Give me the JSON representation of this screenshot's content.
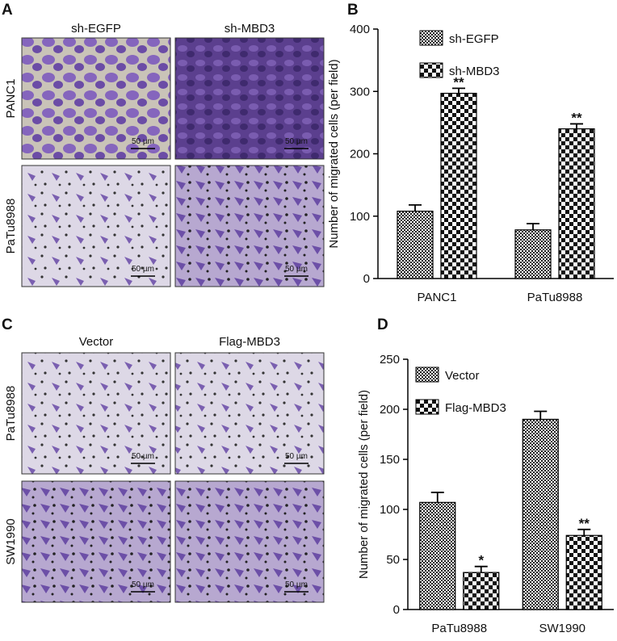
{
  "image_panels": [
    {
      "panel": "A",
      "columns": [
        "sh-EGFP",
        "sh-MBD3"
      ],
      "rows": [
        "PANC1",
        "PaTu8988"
      ],
      "scale_bar": "50 µm"
    },
    {
      "panel": "C",
      "columns": [
        "Vector",
        "Flag-MBD3"
      ],
      "rows": [
        "PaTu8988",
        "SW1990"
      ],
      "scale_bar": "50 µm"
    }
  ],
  "chart_data": [
    {
      "type": "bar",
      "panel": "B",
      "y_label": "Number of migrated cells (per field)",
      "categories": [
        "PANC1",
        "PaTu8988"
      ],
      "series": [
        {
          "name": "sh-EGFP",
          "color": "#222222",
          "values": [
            108,
            78
          ],
          "errors": [
            10,
            10
          ]
        },
        {
          "name": "sh-MBD3",
          "color": "#111111",
          "values": [
            297,
            240
          ],
          "errors": [
            8,
            8
          ],
          "significance": [
            "**",
            "**"
          ]
        }
      ],
      "ylim": [
        0,
        400
      ],
      "yticks": [
        0,
        100,
        200,
        300,
        400
      ],
      "legend": "upper-left"
    },
    {
      "type": "bar",
      "panel": "D",
      "y_label": "Number of migrated cells (per field)",
      "categories": [
        "PaTu8988",
        "SW1990"
      ],
      "series": [
        {
          "name": "Vector",
          "color": "#222222",
          "values": [
            107,
            190
          ],
          "errors": [
            10,
            8
          ]
        },
        {
          "name": "Flag-MBD3",
          "color": "#111111",
          "values": [
            37,
            74
          ],
          "errors": [
            6,
            6
          ],
          "significance": [
            "*",
            "**"
          ]
        }
      ],
      "ylim": [
        0,
        250
      ],
      "yticks": [
        0,
        50,
        100,
        150,
        200,
        250
      ],
      "legend": "upper-left"
    }
  ]
}
